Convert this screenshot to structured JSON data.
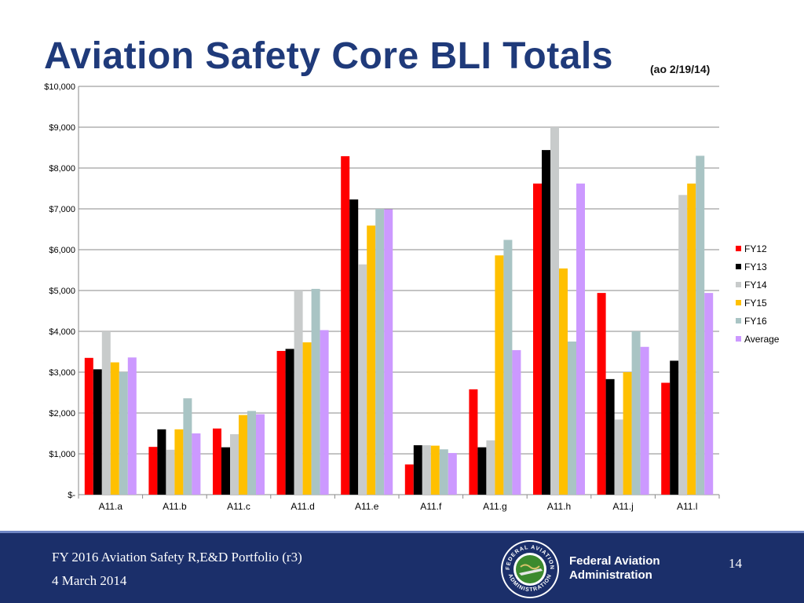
{
  "slide": {
    "title": "Aviation Safety Core BLI Totals",
    "subtitle": "(ao 2/19/14)"
  },
  "footer": {
    "portfolio": "FY 2016 Aviation Safety R,E&D Portfolio (r3)",
    "date": "4 March 2014",
    "agency_line1": "Federal Aviation",
    "agency_line2": "Administration",
    "page_number": "14",
    "seal_text": "FEDERAL AVIATION ADMINISTRATION"
  },
  "chart_data": {
    "type": "bar",
    "title": "Aviation Safety Core BLI Totals",
    "xlabel": "",
    "ylabel": "",
    "ylim": [
      0,
      10000
    ],
    "grid": true,
    "legend_position": "right",
    "y_ticks": [
      0,
      1000,
      2000,
      3000,
      4000,
      5000,
      6000,
      7000,
      8000,
      9000,
      10000
    ],
    "y_tick_labels": [
      "$-",
      "$1,000",
      "$2,000",
      "$3,000",
      "$4,000",
      "$5,000",
      "$6,000",
      "$7,000",
      "$8,000",
      "$9,000",
      "$10,000"
    ],
    "categories": [
      "A11.a",
      "A11.b",
      "A11.c",
      "A11.d",
      "A11.e",
      "A11.f",
      "A11.g",
      "A11.h",
      "A11.j",
      "A11.l"
    ],
    "series": [
      {
        "name": "FY12",
        "color": "#ff0000",
        "values": [
          3350,
          1170,
          1620,
          3520,
          8290,
          740,
          2580,
          7620,
          4940,
          2740
        ]
      },
      {
        "name": "FY13",
        "color": "#000000",
        "values": [
          3070,
          1600,
          1160,
          3570,
          7230,
          1210,
          1160,
          8440,
          2830,
          3280
        ]
      },
      {
        "name": "FY14",
        "color": "#c8cbcb",
        "values": [
          4000,
          1100,
          1480,
          5000,
          5640,
          1210,
          1330,
          9000,
          1840,
          7340
        ]
      },
      {
        "name": "FY15",
        "color": "#ffc000",
        "values": [
          3240,
          1600,
          1950,
          3730,
          6590,
          1200,
          5860,
          5540,
          3000,
          7620
        ]
      },
      {
        "name": "FY16",
        "color": "#a9c4c4",
        "values": [
          3000,
          2360,
          2050,
          5040,
          7000,
          1110,
          6240,
          3750,
          4000,
          8300
        ]
      },
      {
        "name": "Average",
        "color": "#cc99ff",
        "values": [
          3360,
          1500,
          1970,
          4030,
          6990,
          1020,
          3540,
          7620,
          3620,
          4940
        ]
      }
    ]
  }
}
